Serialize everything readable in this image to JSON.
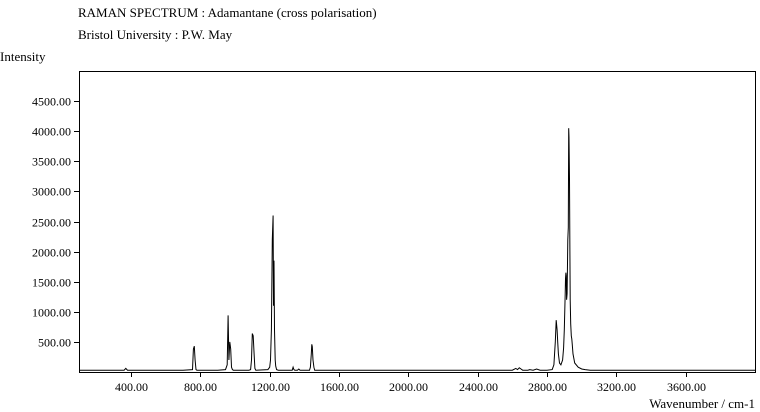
{
  "header": {
    "title": "RAMAN SPECTRUM : Adamantane (cross polarisation)",
    "subtitle": "Bristol University : P.W. May"
  },
  "chart_data": {
    "type": "line",
    "title": "RAMAN SPECTRUM : Adamantane (cross polarisation)",
    "subtitle": "Bristol University : P.W. May",
    "xlabel": "Wavenumber / cm-1",
    "ylabel": "Intensity",
    "xlim": [
      100,
      4000
    ],
    "ylim": [
      0,
      5000
    ],
    "xticks": [
      400,
      800,
      1200,
      1600,
      2000,
      2400,
      2800,
      3200,
      3600
    ],
    "yticks": [
      500,
      1000,
      1500,
      2000,
      2500,
      3000,
      3500,
      4000,
      4500
    ],
    "xtick_labels": [
      "400.00",
      "800.00",
      "1200.00",
      "1600.00",
      "2000.00",
      "2400.00",
      "2800.00",
      "3200.00",
      "3600.00"
    ],
    "ytick_labels": [
      "500.00",
      "1000.00",
      "1500.00",
      "2000.00",
      "2500.00",
      "3000.00",
      "3500.00",
      "4000.00",
      "4500.00"
    ],
    "grid": false,
    "line_color": "#000000",
    "series": [
      {
        "x": [
          100,
          300,
          360,
          370,
          380,
          600,
          700,
          755,
          760,
          765,
          770,
          775,
          780,
          785,
          900,
          945,
          955,
          960,
          965,
          970,
          975,
          980,
          985,
          990,
          1080,
          1090,
          1095,
          1100,
          1105,
          1110,
          1115,
          1120,
          1190,
          1200,
          1205,
          1210,
          1215,
          1220,
          1222,
          1225,
          1228,
          1232,
          1235,
          1240,
          1250,
          1330,
          1335,
          1340,
          1345,
          1360,
          1368,
          1375,
          1430,
          1435,
          1440,
          1443,
          1446,
          1450,
          1455,
          1460,
          1700,
          2000,
          2200,
          2400,
          2600,
          2620,
          2630,
          2640,
          2650,
          2660,
          2690,
          2700,
          2720,
          2740,
          2760,
          2800,
          2830,
          2840,
          2848,
          2853,
          2858,
          2862,
          2866,
          2872,
          2880,
          2890,
          2896,
          2900,
          2903,
          2905,
          2907,
          2909,
          2911,
          2913,
          2916,
          2918,
          2920,
          2923,
          2925,
          2927,
          2930,
          2932,
          2934,
          2937,
          2940,
          2943,
          2946,
          2950,
          2960,
          2980,
          3000,
          3020,
          3050,
          3100,
          3200,
          3400,
          3700,
          4000
        ],
        "y": [
          30,
          30,
          30,
          60,
          30,
          30,
          30,
          40,
          380,
          430,
          200,
          40,
          30,
          30,
          30,
          40,
          120,
          940,
          200,
          500,
          380,
          80,
          40,
          30,
          30,
          40,
          200,
          640,
          600,
          300,
          60,
          30,
          40,
          80,
          200,
          700,
          2200,
          2600,
          1100,
          1850,
          700,
          200,
          100,
          40,
          30,
          30,
          80,
          40,
          30,
          30,
          50,
          30,
          30,
          80,
          300,
          460,
          420,
          200,
          80,
          30,
          30,
          30,
          30,
          30,
          30,
          60,
          40,
          70,
          50,
          30,
          30,
          40,
          30,
          50,
          30,
          30,
          40,
          120,
          500,
          860,
          700,
          500,
          300,
          150,
          120,
          200,
          400,
          700,
          1100,
          1300,
          1550,
          1650,
          1600,
          1200,
          1300,
          1800,
          2200,
          2400,
          4050,
          3900,
          3200,
          2000,
          1200,
          800,
          600,
          550,
          450,
          300,
          150,
          80,
          50,
          40,
          30,
          30,
          30,
          30,
          30,
          30
        ]
      }
    ]
  }
}
